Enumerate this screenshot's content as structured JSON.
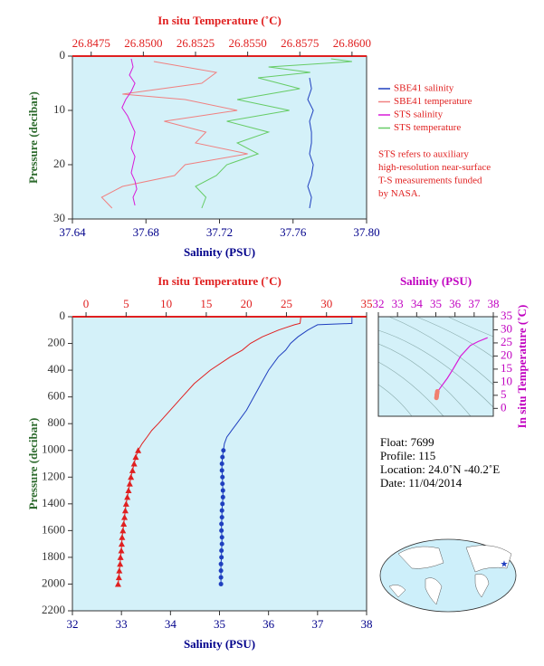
{
  "chart_data": [
    {
      "type": "line",
      "x_label": "Salinity (PSU)",
      "x2_label": "In situ Temperature (˚C)",
      "y_label": "Pressure (decibar)",
      "xlim": [
        37.64,
        37.8
      ],
      "xticks": [
        37.64,
        37.68,
        37.72,
        37.76,
        {
          "value": 37.8,
          "label": "37.80"
        }
      ],
      "x2lim": [
        26.8466,
        26.8607
      ],
      "x2ticks": [
        26.8475,
        {
          "value": 26.85,
          "label": "26.8500"
        },
        26.8525,
        {
          "value": 26.855,
          "label": "26.8550"
        },
        26.8575,
        {
          "value": 26.86,
          "label": "26.8600"
        }
      ],
      "ylim": [
        0,
        30
      ],
      "yticks": [
        0,
        10,
        20,
        30
      ],
      "y_inverted": true,
      "series": [
        {
          "name": "SBE41 salinity",
          "color": "#1f3fbf",
          "axis": "x",
          "pressure": [
            4,
            6,
            8,
            10,
            12,
            14,
            16,
            18,
            20,
            22,
            24,
            26,
            28
          ],
          "values": [
            37.769,
            37.77,
            37.768,
            37.771,
            37.769,
            37.77,
            37.77,
            37.769,
            37.771,
            37.77,
            37.768,
            37.77,
            37.769
          ]
        },
        {
          "name": "SBE41 temperature",
          "color": "#f08080",
          "axis": "x2",
          "pressure": [
            1,
            3,
            5,
            7,
            8,
            10,
            12,
            14,
            16,
            18,
            20,
            22,
            24,
            26,
            28
          ],
          "values": [
            26.8505,
            26.8535,
            26.8528,
            26.849,
            26.852,
            26.8545,
            26.851,
            26.853,
            26.8525,
            26.855,
            26.852,
            26.8515,
            26.849,
            26.848,
            26.8485
          ]
        },
        {
          "name": "STS salinity",
          "color": "#d81bd8",
          "axis": "x",
          "pressure": [
            0.5,
            2,
            3.5,
            5,
            6.5,
            8,
            9.5,
            11,
            12.5,
            14,
            15.5,
            17,
            18.5,
            20,
            21.5,
            23,
            24.5,
            26,
            27.5
          ],
          "values": [
            37.672,
            37.673,
            37.671,
            37.674,
            37.672,
            37.669,
            37.667,
            37.67,
            37.672,
            37.674,
            37.673,
            37.672,
            37.674,
            37.673,
            37.672,
            37.674,
            37.675,
            37.673,
            37.674
          ]
        },
        {
          "name": "STS temperature",
          "color": "#66cc66",
          "axis": "x2",
          "pressure": [
            0.5,
            1,
            2,
            3,
            4,
            6,
            8,
            10,
            12,
            14,
            16,
            18,
            20,
            22,
            24,
            26,
            28
          ],
          "values": [
            26.859,
            26.86,
            26.856,
            26.858,
            26.8555,
            26.8575,
            26.8545,
            26.857,
            26.854,
            26.856,
            26.8545,
            26.8555,
            26.854,
            26.8535,
            26.8525,
            26.853,
            26.8528
          ]
        }
      ],
      "note": [
        "STS refers to auxiliary",
        "high-resolution near-surface",
        "T-S measurements funded",
        "by NASA."
      ]
    },
    {
      "type": "line",
      "x_label": "Salinity (PSU)",
      "x2_label": "In situ Temperature (˚C)",
      "y_label": "Pressure (decibar)",
      "xlim": [
        32,
        38
      ],
      "xticks": [
        32,
        33,
        34,
        35,
        36,
        37,
        38
      ],
      "x2lim": [
        -1.7,
        35
      ],
      "x2ticks": [
        0,
        5,
        10,
        15,
        20,
        25,
        30,
        35
      ],
      "ylim": [
        0,
        2200
      ],
      "yticks": [
        0,
        200,
        400,
        600,
        800,
        1000,
        1200,
        1400,
        1600,
        1800,
        2000,
        2200
      ],
      "y_inverted": true,
      "series": [
        {
          "color": "#1f3fbf",
          "axis": "x",
          "pressure": [
            0,
            50,
            60,
            80,
            100,
            150,
            200,
            250,
            300,
            400,
            500,
            600,
            700,
            800,
            850,
            900,
            950,
            1000
          ],
          "values": [
            37.7,
            37.7,
            37.0,
            36.9,
            36.8,
            36.6,
            36.45,
            36.35,
            36.2,
            36.0,
            35.85,
            35.7,
            35.55,
            35.35,
            35.25,
            35.15,
            35.1,
            35.08
          ]
        },
        {
          "color": "#1f3fbf",
          "axis": "x",
          "marker": "circle",
          "pressure": [
            1000,
            1050,
            1100,
            1150,
            1200,
            1250,
            1300,
            1350,
            1400,
            1450,
            1500,
            1550,
            1600,
            1650,
            1700,
            1750,
            1800,
            1850,
            1900,
            1950,
            2000
          ],
          "values": [
            35.08,
            35.06,
            35.05,
            35.05,
            35.06,
            35.06,
            35.07,
            35.07,
            35.06,
            35.05,
            35.05,
            35.04,
            35.04,
            35.05,
            35.05,
            35.04,
            35.04,
            35.03,
            35.03,
            35.03,
            35.03
          ]
        },
        {
          "color": "#e02020",
          "axis": "x2",
          "pressure": [
            0,
            50,
            60,
            80,
            100,
            150,
            200,
            250,
            300,
            400,
            500,
            600,
            700,
            800,
            850,
            900,
            950,
            1000
          ],
          "values": [
            26.8,
            26.7,
            26.0,
            25.0,
            24.0,
            22.0,
            20.5,
            19.5,
            18.0,
            15.5,
            13.5,
            12.0,
            10.5,
            9.0,
            8.2,
            7.6,
            7.0,
            6.5
          ]
        },
        {
          "color": "#e02020",
          "axis": "x2",
          "marker": "triangle",
          "pressure": [
            1000,
            1050,
            1100,
            1150,
            1200,
            1250,
            1300,
            1350,
            1400,
            1450,
            1500,
            1550,
            1600,
            1650,
            1700,
            1750,
            1800,
            1850,
            1900,
            1950,
            2000
          ],
          "values": [
            6.5,
            6.2,
            6.0,
            5.8,
            5.6,
            5.45,
            5.3,
            5.15,
            5.0,
            4.9,
            4.8,
            4.7,
            4.6,
            4.5,
            4.45,
            4.4,
            4.3,
            4.25,
            4.15,
            4.1,
            4.0
          ]
        }
      ],
      "info": [
        "Float:  7699",
        "Profile:  115",
        "Location:  24.0˚N  -40.2˚E",
        "Date:  11/04/2014"
      ]
    },
    {
      "type": "scatter",
      "x_label": "Salinity (PSU)",
      "y_label": "In situ Temperature (˚C)",
      "xlim": [
        32,
        38
      ],
      "xticks": [
        32,
        33,
        34,
        35,
        36,
        37,
        38
      ],
      "ylim": [
        -3,
        35
      ],
      "yticks": [
        0,
        5,
        10,
        15,
        20,
        25,
        30,
        35
      ],
      "series": [
        {
          "color": "#d81bd8",
          "x": [
            35.05,
            35.05,
            35.1,
            35.3,
            35.6,
            35.9,
            36.3,
            36.8,
            37.2,
            37.7
          ],
          "values": [
            4,
            5,
            6.5,
            8.5,
            11.5,
            15,
            20,
            24,
            25.5,
            27
          ]
        },
        {
          "color": "#f08070",
          "marker": "circle",
          "x": [
            35.03,
            35.04,
            35.05,
            35.05,
            35.06,
            35.07,
            35.08
          ],
          "values": [
            4.0,
            4.4,
            4.8,
            5.2,
            5.6,
            6.0,
            6.5
          ]
        }
      ]
    }
  ]
}
